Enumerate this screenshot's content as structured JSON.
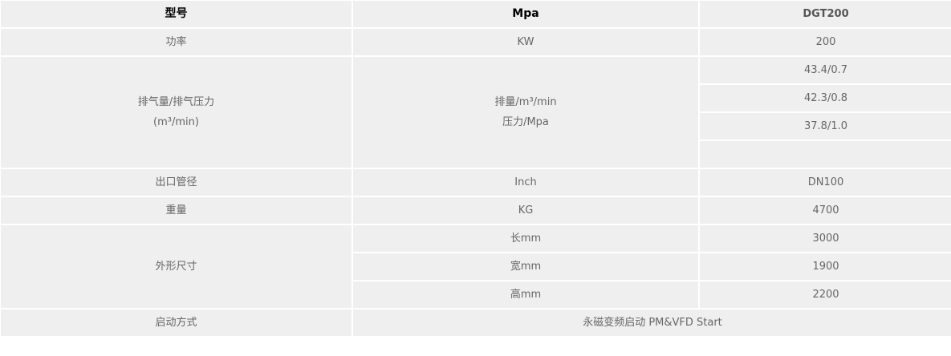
{
  "header": {
    "col1": "型号",
    "col2": "Mpa",
    "col3": "DGT200"
  },
  "rows": {
    "power": {
      "label": "功率",
      "unit": "KW",
      "value": "200"
    },
    "flow": {
      "label_line1": "排气量/排气压力",
      "label_line2": "(m³/min)",
      "unit_line1": "排量/m³/min",
      "unit_line2": "压力/Mpa",
      "values": [
        "43.4/0.7",
        "42.3/0.8",
        "37.8/1.0",
        ""
      ]
    },
    "outlet": {
      "label": "出口管径",
      "unit": "Inch",
      "value": "DN100"
    },
    "weight": {
      "label": "重量",
      "unit": "KG",
      "value": "4700"
    },
    "dimensions": {
      "label": "外形尺寸",
      "items": [
        {
          "unit": "长mm",
          "value": "3000"
        },
        {
          "unit": "宽mm",
          "value": "1900"
        },
        {
          "unit": "高mm",
          "value": "2200"
        }
      ]
    },
    "start": {
      "label": "启动方式",
      "value": "永磁变频启动 PM&VFD Start"
    }
  }
}
